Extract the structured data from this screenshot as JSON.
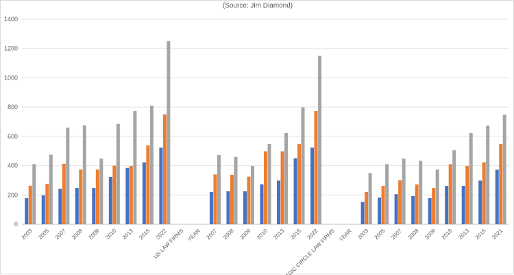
{
  "chart_data": {
    "type": "bar",
    "title": "",
    "subtitle": "(Source: Jim Diamond)",
    "xlabel": "",
    "ylabel": "",
    "ylim": [
      0,
      1400
    ],
    "yticks": [
      0,
      200,
      400,
      600,
      800,
      1000,
      1200,
      1400
    ],
    "grid": true,
    "legend": "none",
    "categories": [
      "2003",
      "2005",
      "2007",
      "2008",
      "2009",
      "2010",
      "2013",
      "2015",
      "2022",
      "US LAW FIRMS",
      "YEAR",
      "2007",
      "2008",
      "2009",
      "2010",
      "2013",
      "2015",
      "2022",
      "MAGIC CIRCLE LAW FIRMS",
      "YEAR",
      "2003",
      "2005",
      "2007",
      "2008",
      "2009",
      "2010",
      "2013",
      "2015",
      "2021"
    ],
    "series": [
      {
        "color": "#4472c4",
        "values": [
          178,
          198,
          242,
          248,
          248,
          323,
          385,
          423,
          523,
          null,
          null,
          220,
          225,
          225,
          273,
          298,
          450,
          523,
          null,
          null,
          152,
          182,
          205,
          192,
          178,
          262,
          262,
          298,
          372
        ]
      },
      {
        "color": "#ed7d31",
        "values": [
          263,
          275,
          413,
          373,
          373,
          400,
          398,
          538,
          750,
          null,
          null,
          340,
          338,
          325,
          498,
          498,
          548,
          773,
          null,
          null,
          220,
          262,
          300,
          272,
          248,
          410,
          398,
          423,
          548
        ]
      },
      {
        "color": "#a5a5a5",
        "values": [
          410,
          475,
          660,
          675,
          448,
          685,
          773,
          810,
          1250,
          null,
          null,
          473,
          460,
          398,
          548,
          623,
          798,
          1150,
          null,
          null,
          350,
          410,
          448,
          433,
          373,
          505,
          623,
          673,
          748
        ]
      }
    ]
  }
}
